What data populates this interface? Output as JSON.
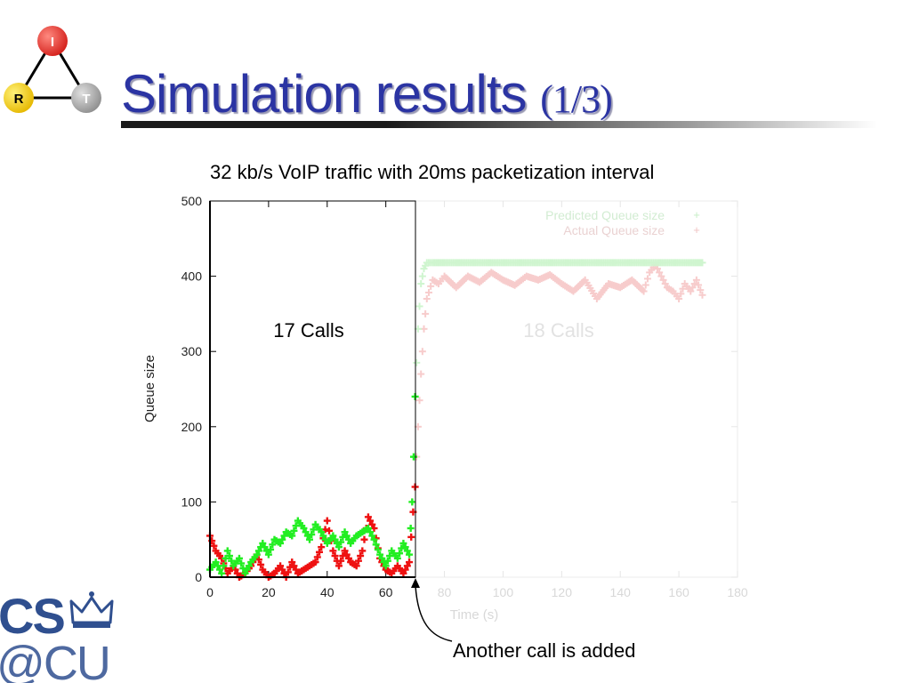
{
  "slide": {
    "title": "Simulation results",
    "title_suffix": "(1/3)",
    "subtitle": "32 kb/s VoIP traffic with 20ms packetization interval",
    "annotation": "Another call is added",
    "region_left_label": "17 Calls",
    "region_right_label": "18 Calls"
  },
  "logo_irt": {
    "nodes": [
      {
        "letter": "I",
        "color": "#e8302b"
      },
      {
        "letter": "R",
        "color": "#f5c800"
      },
      {
        "letter": "T",
        "color": "#a8a8a8"
      }
    ]
  },
  "logo_cscu": {
    "line1": "CS",
    "line2": "@CU",
    "color": "#2f4f8f"
  },
  "chart_data": {
    "type": "scatter",
    "title": "",
    "xlabel": "Time (s)",
    "ylabel": "Queue size",
    "xlim": [
      0,
      180
    ],
    "ylim": [
      0,
      500
    ],
    "xticks": [
      0,
      20,
      40,
      60,
      80,
      100,
      120,
      140,
      160,
      180
    ],
    "yticks": [
      0,
      100,
      200,
      300,
      400,
      500
    ],
    "marker": "+",
    "event_x": 70,
    "legend_placement": "top-right",
    "series": [
      {
        "name": "Predicted Queue size",
        "color": "#22ee22",
        "faded_color": "#cff5cf",
        "points": [
          [
            0,
            10
          ],
          [
            2,
            20
          ],
          [
            4,
            5
          ],
          [
            6,
            35
          ],
          [
            8,
            15
          ],
          [
            10,
            25
          ],
          [
            12,
            5
          ],
          [
            14,
            20
          ],
          [
            16,
            30
          ],
          [
            18,
            45
          ],
          [
            20,
            30
          ],
          [
            22,
            50
          ],
          [
            24,
            45
          ],
          [
            26,
            60
          ],
          [
            28,
            55
          ],
          [
            30,
            75
          ],
          [
            32,
            65
          ],
          [
            34,
            50
          ],
          [
            36,
            70
          ],
          [
            38,
            60
          ],
          [
            40,
            45
          ],
          [
            42,
            55
          ],
          [
            44,
            40
          ],
          [
            46,
            60
          ],
          [
            48,
            45
          ],
          [
            50,
            55
          ],
          [
            52,
            60
          ],
          [
            54,
            65
          ],
          [
            56,
            50
          ],
          [
            58,
            30
          ],
          [
            60,
            15
          ],
          [
            62,
            35
          ],
          [
            64,
            25
          ],
          [
            66,
            45
          ],
          [
            68,
            30
          ],
          [
            69,
            100
          ],
          [
            69.5,
            160
          ],
          [
            70,
            240
          ],
          [
            71,
            330
          ],
          [
            72,
            390
          ],
          [
            73,
            410
          ],
          [
            74,
            418
          ],
          [
            76,
            418
          ],
          [
            80,
            418
          ],
          [
            85,
            418
          ],
          [
            90,
            418
          ],
          [
            95,
            418
          ],
          [
            100,
            418
          ],
          [
            105,
            418
          ],
          [
            110,
            418
          ],
          [
            115,
            418
          ],
          [
            120,
            418
          ],
          [
            125,
            418
          ],
          [
            130,
            418
          ],
          [
            135,
            418
          ],
          [
            140,
            418
          ],
          [
            145,
            418
          ],
          [
            150,
            418
          ],
          [
            155,
            418
          ],
          [
            160,
            418
          ],
          [
            165,
            418
          ],
          [
            168,
            418
          ]
        ]
      },
      {
        "name": "Actual Queue size",
        "color": "#ee1111",
        "faded_color": "#f7cccc",
        "points": [
          [
            0,
            55
          ],
          [
            2,
            35
          ],
          [
            4,
            25
          ],
          [
            6,
            5
          ],
          [
            8,
            15
          ],
          [
            10,
            0
          ],
          [
            12,
            5
          ],
          [
            14,
            15
          ],
          [
            16,
            30
          ],
          [
            18,
            10
          ],
          [
            20,
            0
          ],
          [
            22,
            5
          ],
          [
            24,
            15
          ],
          [
            26,
            0
          ],
          [
            28,
            20
          ],
          [
            30,
            5
          ],
          [
            32,
            10
          ],
          [
            34,
            15
          ],
          [
            36,
            20
          ],
          [
            38,
            40
          ],
          [
            40,
            75
          ],
          [
            42,
            35
          ],
          [
            44,
            15
          ],
          [
            46,
            35
          ],
          [
            48,
            20
          ],
          [
            50,
            15
          ],
          [
            52,
            35
          ],
          [
            54,
            80
          ],
          [
            56,
            65
          ],
          [
            58,
            25
          ],
          [
            60,
            10
          ],
          [
            62,
            5
          ],
          [
            64,
            15
          ],
          [
            66,
            5
          ],
          [
            68,
            20
          ],
          [
            70,
            120
          ],
          [
            71,
            200
          ],
          [
            72,
            270
          ],
          [
            73,
            330
          ],
          [
            74,
            370
          ],
          [
            76,
            395
          ],
          [
            78,
            390
          ],
          [
            80,
            400
          ],
          [
            84,
            385
          ],
          [
            88,
            400
          ],
          [
            92,
            392
          ],
          [
            96,
            405
          ],
          [
            100,
            395
          ],
          [
            104,
            388
          ],
          [
            108,
            400
          ],
          [
            112,
            395
          ],
          [
            116,
            402
          ],
          [
            120,
            390
          ],
          [
            124,
            380
          ],
          [
            128,
            395
          ],
          [
            132,
            370
          ],
          [
            136,
            390
          ],
          [
            140,
            385
          ],
          [
            144,
            395
          ],
          [
            148,
            380
          ],
          [
            150,
            405
          ],
          [
            152,
            415
          ],
          [
            154,
            400
          ],
          [
            156,
            385
          ],
          [
            158,
            380
          ],
          [
            160,
            370
          ],
          [
            162,
            390
          ],
          [
            164,
            380
          ],
          [
            166,
            395
          ],
          [
            168,
            375
          ]
        ]
      }
    ]
  }
}
